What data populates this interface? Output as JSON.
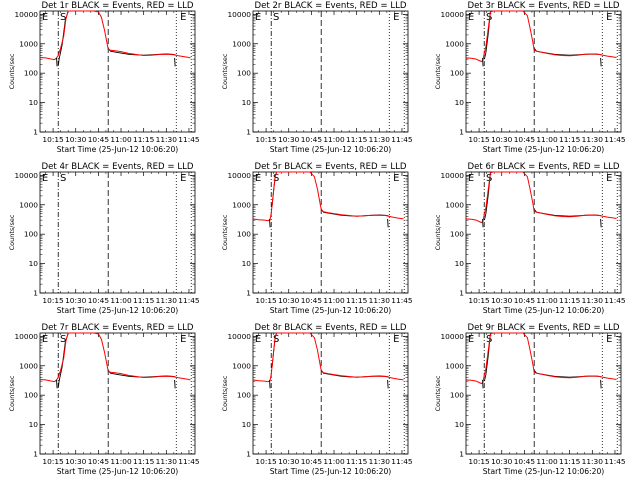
{
  "chart_data": [
    {
      "type": "line",
      "title": "Det 1r BLACK = Events, RED = LLD",
      "shape": "A",
      "marker_labels": [
        "E",
        "S",
        "E"
      ]
    },
    {
      "type": "line",
      "title": "Det 2r BLACK = Events, RED = LLD",
      "shape": "none",
      "marker_labels": [
        "E",
        "S",
        "E"
      ]
    },
    {
      "type": "line",
      "title": "Det 3r BLACK = Events, RED = LLD",
      "shape": "B",
      "marker_labels": [
        "E",
        "S",
        "E"
      ]
    },
    {
      "type": "line",
      "title": "Det 4r BLACK = Events, RED = LLD",
      "shape": "none",
      "marker_labels": [
        "E",
        "S",
        "E"
      ]
    },
    {
      "type": "line",
      "title": "Det 5r BLACK = Events, RED = LLD",
      "shape": "C",
      "marker_labels": [
        "E",
        "S",
        "E"
      ]
    },
    {
      "type": "line",
      "title": "Det 6r BLACK = Events, RED = LLD",
      "shape": "B",
      "marker_labels": [
        "E",
        "S",
        "E"
      ]
    },
    {
      "type": "line",
      "title": "Det 7r BLACK = Events, RED = LLD",
      "shape": "A",
      "marker_labels": [
        "E",
        "S",
        "E"
      ]
    },
    {
      "type": "line",
      "title": "Det 8r BLACK = Events, RED = LLD",
      "shape": "C",
      "marker_labels": [
        "E",
        "S",
        "E"
      ]
    },
    {
      "type": "line",
      "title": "Det 9r BLACK = Events, RED = LLD",
      "shape": "B",
      "marker_labels": [
        "E",
        "S",
        "E"
      ]
    }
  ],
  "common": {
    "xlabel": "Start Time (25-Jun-12 10:06:20)",
    "ylabel": "Counts/sec",
    "x_ticks": [
      {
        "min": 15,
        "label": "10:15"
      },
      {
        "min": 30,
        "label": "10:30"
      },
      {
        "min": 45,
        "label": "10:45"
      },
      {
        "min": 60,
        "label": "11:00"
      },
      {
        "min": 75,
        "label": "11:15"
      },
      {
        "min": 90,
        "label": "11:30"
      },
      {
        "min": 105,
        "label": "11:45"
      }
    ],
    "y_ticks": [
      {
        "value": 1,
        "label": "1"
      },
      {
        "value": 10,
        "label": "10"
      },
      {
        "value": 100,
        "label": "100"
      },
      {
        "value": 1000,
        "label": "1000"
      },
      {
        "value": 10000,
        "label": "10000"
      }
    ],
    "xlim_min": [
      6.33,
      109
    ],
    "ylim": [
      1,
      13000
    ],
    "y_scale": "log",
    "x_axis": "minutes after 10:00",
    "vlines": [
      {
        "min": 18.4,
        "style": "dashdot"
      },
      {
        "min": 51.5,
        "style": "dashed"
      },
      {
        "min": 96.6,
        "style": "dotted"
      },
      {
        "min": 106.5,
        "style": "dotted"
      }
    ],
    "series_colors": {
      "events": "#000000",
      "lld": "#ff0000"
    },
    "series_shapes": {
      "A": {
        "events": [
          [
            18.5,
            190
          ],
          [
            19,
            300
          ],
          [
            21,
            900
          ],
          [
            23,
            6000
          ],
          [
            25,
            20000
          ]
        ],
        "lld": [
          [
            6.33,
            340
          ],
          [
            10,
            330
          ],
          [
            14,
            300
          ],
          [
            16,
            290
          ],
          [
            17,
            320
          ],
          [
            18.2,
            380
          ],
          [
            20,
            700
          ],
          [
            22,
            1800
          ],
          [
            23.5,
            7000
          ],
          [
            25,
            18000
          ],
          [
            36,
            18000
          ],
          [
            42,
            15000
          ],
          [
            45,
            12000
          ],
          [
            47,
            8000
          ],
          [
            49,
            3000
          ],
          [
            50.5,
            1200
          ],
          [
            51.5,
            650
          ],
          [
            53,
            600
          ],
          [
            56,
            580
          ],
          [
            60,
            540
          ],
          [
            65,
            470
          ],
          [
            70,
            430
          ],
          [
            75,
            400
          ],
          [
            80,
            410
          ],
          [
            85,
            430
          ],
          [
            90,
            440
          ],
          [
            93,
            430
          ],
          [
            95,
            420
          ],
          [
            98,
            390
          ],
          [
            101,
            370
          ],
          [
            104,
            350
          ],
          [
            106,
            330
          ]
        ]
      },
      "B": {
        "events": [
          [
            18.5,
            300
          ],
          [
            19.5,
            500
          ],
          [
            21,
            2000
          ],
          [
            22.5,
            12000
          ],
          [
            24,
            20000
          ]
        ],
        "lld": [
          [
            6.33,
            330
          ],
          [
            10,
            320
          ],
          [
            13,
            300
          ],
          [
            15,
            270
          ],
          [
            16.5,
            250
          ],
          [
            17.5,
            270
          ],
          [
            18.3,
            450
          ],
          [
            19.5,
            800
          ],
          [
            21,
            3000
          ],
          [
            22.5,
            12000
          ],
          [
            24,
            20000
          ],
          [
            40,
            20000
          ],
          [
            44,
            16000
          ],
          [
            47,
            9000
          ],
          [
            49,
            3000
          ],
          [
            50.5,
            1200
          ],
          [
            51.5,
            600
          ],
          [
            53,
            560
          ],
          [
            56,
            520
          ],
          [
            60,
            470
          ],
          [
            65,
            420
          ],
          [
            70,
            400
          ],
          [
            75,
            390
          ],
          [
            80,
            410
          ],
          [
            85,
            440
          ],
          [
            90,
            450
          ],
          [
            94,
            440
          ],
          [
            97,
            410
          ],
          [
            100,
            380
          ],
          [
            103,
            360
          ],
          [
            106,
            340
          ]
        ]
      },
      "C": {
        "events": [
          [
            19,
            900
          ],
          [
            20,
            3000
          ],
          [
            21.2,
            10000
          ],
          [
            22,
            20000
          ]
        ],
        "lld": [
          [
            6.33,
            330
          ],
          [
            10,
            310
          ],
          [
            14,
            300
          ],
          [
            16,
            290
          ],
          [
            17.5,
            300
          ],
          [
            18.4,
            500
          ],
          [
            19.2,
            1200
          ],
          [
            20,
            3000
          ],
          [
            21,
            9000
          ],
          [
            22,
            20000
          ],
          [
            40,
            20000
          ],
          [
            44,
            16000
          ],
          [
            47,
            9000
          ],
          [
            49,
            3500
          ],
          [
            50.5,
            1300
          ],
          [
            51.5,
            700
          ],
          [
            53,
            580
          ],
          [
            56,
            540
          ],
          [
            60,
            500
          ],
          [
            65,
            460
          ],
          [
            70,
            430
          ],
          [
            75,
            410
          ],
          [
            80,
            420
          ],
          [
            85,
            440
          ],
          [
            90,
            440
          ],
          [
            94,
            430
          ],
          [
            97,
            400
          ],
          [
            100,
            370
          ],
          [
            103,
            350
          ],
          [
            106,
            330
          ]
        ]
      }
    },
    "event_tail": [
      [
        51.5,
        700
      ],
      [
        53,
        560
      ],
      [
        56,
        520
      ],
      [
        60,
        480
      ],
      [
        65,
        440
      ],
      [
        70,
        420
      ],
      [
        75,
        410
      ],
      [
        80,
        420
      ],
      [
        85,
        440
      ],
      [
        90,
        450
      ],
      [
        94,
        440
      ],
      [
        96,
        420
      ]
    ],
    "spikes_min": [
      17.3,
      95.5
    ],
    "events_end_min": 96
  }
}
